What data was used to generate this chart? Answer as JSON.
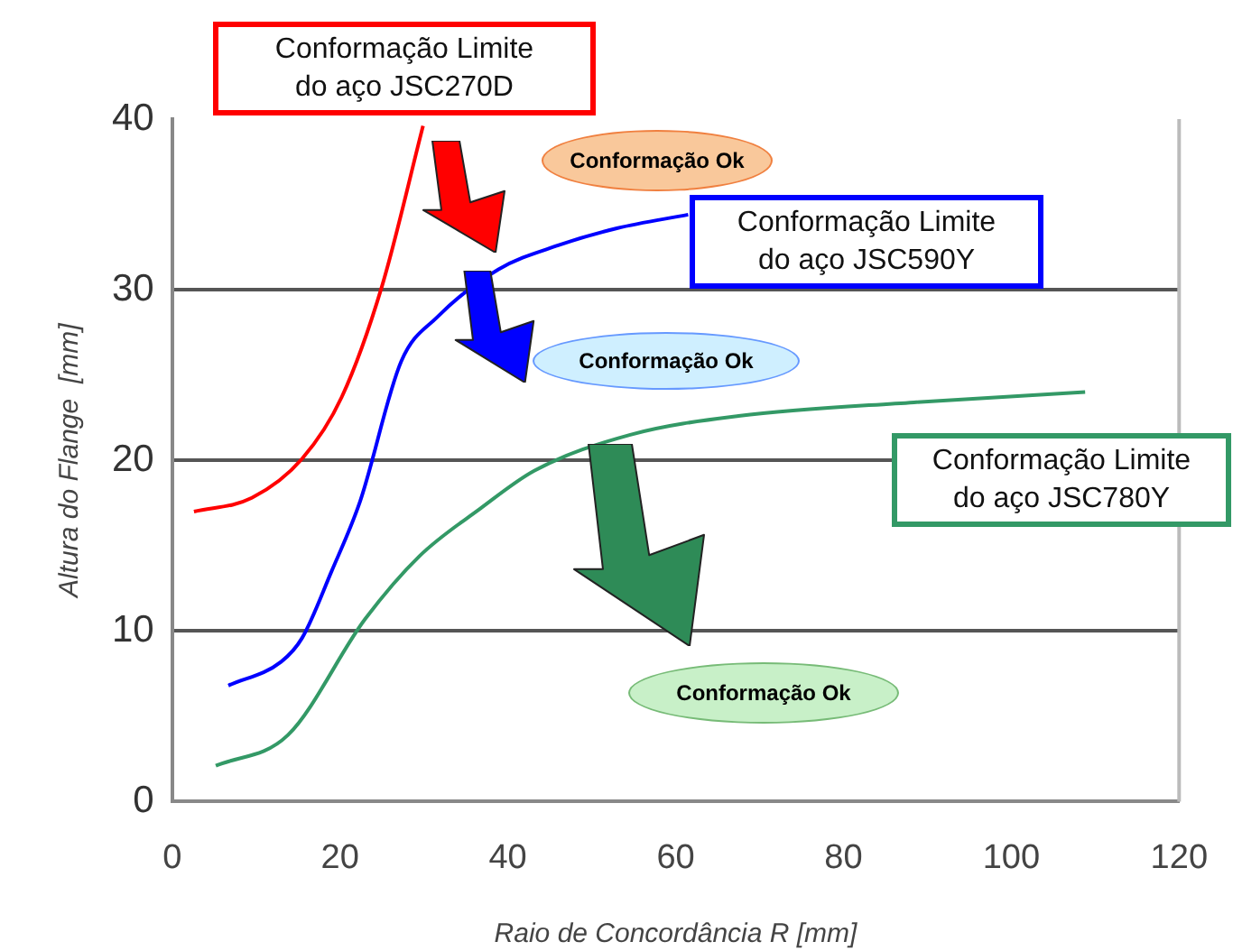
{
  "chart_data": {
    "type": "line",
    "xlabel": "Raio de Concordância R [mm]",
    "ylabel": "Altura do Flange  [mm]",
    "xlim": [
      0,
      120
    ],
    "xticks": [
      0,
      20,
      40,
      60,
      80,
      100,
      120
    ],
    "ylim": [
      0,
      40
    ],
    "yticks": [
      0,
      10,
      20,
      30,
      40
    ],
    "grid": "y",
    "legend": false,
    "marker": "none",
    "series": [
      {
        "name": "Conformação Limite do aço JSC270D",
        "color": "#ff0000",
        "x": [
          2.6,
          9.5,
          15.5,
          20.2,
          25,
          29.9
        ],
        "values": [
          17,
          17.8,
          20.1,
          23.7,
          30.2,
          39.6
        ]
      },
      {
        "name": "Conformação Limite do aço JSC590Y",
        "color": "#0000ff",
        "x": [
          6.7,
          13,
          15.5,
          19,
          22.4,
          27.3,
          31.6,
          38.9,
          46,
          53,
          61.5
        ],
        "values": [
          6.8,
          8.2,
          9.6,
          13.5,
          17.6,
          25.8,
          28.4,
          31.2,
          32.6,
          33.6,
          34.4
        ]
      },
      {
        "name": "Conformação Limite do aço JSC780Y",
        "color": "#339966",
        "x": [
          5.2,
          13.8,
          23,
          29.5,
          36.8,
          43.2,
          54.6,
          67.5,
          88.4,
          108.8
        ],
        "values": [
          2.1,
          3.9,
          10.7,
          14.4,
          17.2,
          19.4,
          21.5,
          22.6,
          23.4,
          24
        ]
      }
    ],
    "annotations": [
      "Conformação Ok",
      "Conformação Ok",
      "Conformação Ok"
    ]
  }
}
